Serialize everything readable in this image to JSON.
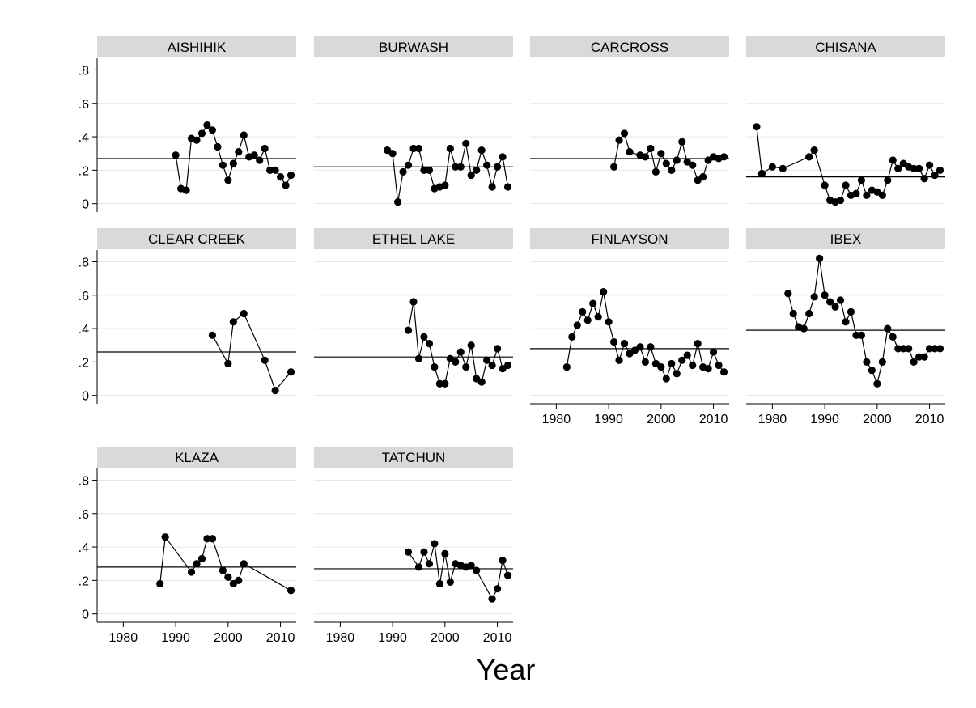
{
  "chart_data": {
    "type": "line",
    "xlabel": "Year",
    "ylabel": "",
    "xlim": [
      1975,
      2013
    ],
    "ylim": [
      -0.05,
      0.87
    ],
    "y_ticks": [
      0,
      0.2,
      0.4,
      0.6,
      0.8
    ],
    "y_tick_labels": [
      "0",
      ".2",
      ".4",
      ".6",
      ".8"
    ],
    "x_ticks": [
      1980,
      1990,
      2000,
      2010
    ],
    "x_tick_labels": [
      "1980",
      "1990",
      "2000",
      "2010"
    ],
    "grid": true,
    "legend": "none",
    "colors": {
      "marker": "#000000",
      "line": "#000000",
      "header_fill": "#d9d9d9",
      "grid": "#e6e6e6"
    },
    "panels": [
      {
        "name": "AISHIHIK",
        "mean": 0.27,
        "x": [
          1990,
          1991,
          1992,
          1993,
          1994,
          1995,
          1996,
          1997,
          1998,
          1999,
          2000,
          2001,
          2002,
          2003,
          2004,
          2005,
          2006,
          2007,
          2008,
          2009,
          2010,
          2011,
          2012
        ],
        "y": [
          0.29,
          0.09,
          0.08,
          0.39,
          0.38,
          0.42,
          0.47,
          0.44,
          0.34,
          0.23,
          0.14,
          0.24,
          0.31,
          0.41,
          0.28,
          0.29,
          0.26,
          0.33,
          0.2,
          0.2,
          0.16,
          0.11,
          0.17
        ]
      },
      {
        "name": "BURWASH",
        "mean": 0.22,
        "x": [
          1989,
          1990,
          1991,
          1992,
          1993,
          1994,
          1995,
          1996,
          1997,
          1998,
          1999,
          2000,
          2001,
          2002,
          2003,
          2004,
          2005,
          2006,
          2007,
          2008,
          2009,
          2010,
          2011,
          2012
        ],
        "y": [
          0.32,
          0.3,
          0.01,
          0.19,
          0.23,
          0.33,
          0.33,
          0.2,
          0.2,
          0.09,
          0.1,
          0.11,
          0.33,
          0.22,
          0.22,
          0.36,
          0.17,
          0.2,
          0.32,
          0.23,
          0.1,
          0.22,
          0.28,
          0.1
        ]
      },
      {
        "name": "CARCROSS",
        "mean": 0.27,
        "x": [
          1991,
          1992,
          1993,
          1994,
          1996,
          1997,
          1998,
          1999,
          2000,
          2001,
          2002,
          2003,
          2004,
          2005,
          2006,
          2007,
          2008,
          2009,
          2010,
          2011,
          2012
        ],
        "y": [
          0.22,
          0.38,
          0.42,
          0.31,
          0.29,
          0.28,
          0.33,
          0.19,
          0.3,
          0.24,
          0.2,
          0.26,
          0.37,
          0.25,
          0.23,
          0.14,
          0.16,
          0.26,
          0.28,
          0.27,
          0.28
        ]
      },
      {
        "name": "CHISANA",
        "mean": 0.16,
        "x": [
          1977,
          1978,
          1980,
          1982,
          1987,
          1988,
          1990,
          1991,
          1992,
          1993,
          1994,
          1995,
          1996,
          1997,
          1998,
          1999,
          2000,
          2001,
          2002,
          2003,
          2004,
          2005,
          2006,
          2007,
          2008,
          2009,
          2010,
          2011,
          2012
        ],
        "y": [
          0.46,
          0.18,
          0.22,
          0.21,
          0.28,
          0.32,
          0.11,
          0.02,
          0.01,
          0.02,
          0.11,
          0.05,
          0.06,
          0.14,
          0.05,
          0.08,
          0.07,
          0.05,
          0.14,
          0.26,
          0.21,
          0.24,
          0.22,
          0.21,
          0.21,
          0.15,
          0.23,
          0.17,
          0.2
        ]
      },
      {
        "name": "CLEAR CREEK",
        "mean": 0.26,
        "x": [
          1997,
          2000,
          2001,
          2003,
          2007,
          2009,
          2012
        ],
        "y": [
          0.36,
          0.19,
          0.44,
          0.49,
          0.21,
          0.03,
          0.14
        ]
      },
      {
        "name": "ETHEL LAKE",
        "mean": 0.23,
        "x": [
          1993,
          1994,
          1995,
          1996,
          1997,
          1998,
          1999,
          2000,
          2001,
          2002,
          2003,
          2004,
          2005,
          2006,
          2007,
          2008,
          2009,
          2010,
          2011,
          2012
        ],
        "y": [
          0.39,
          0.56,
          0.22,
          0.35,
          0.31,
          0.17,
          0.07,
          0.07,
          0.22,
          0.2,
          0.26,
          0.17,
          0.3,
          0.1,
          0.08,
          0.21,
          0.18,
          0.28,
          0.16,
          0.18
        ]
      },
      {
        "name": "FINLAYSON",
        "mean": 0.28,
        "x": [
          1982,
          1983,
          1984,
          1985,
          1986,
          1987,
          1988,
          1989,
          1990,
          1991,
          1992,
          1993,
          1994,
          1995,
          1996,
          1997,
          1998,
          1999,
          2000,
          2001,
          2002,
          2003,
          2004,
          2005,
          2006,
          2007,
          2008,
          2009,
          2010,
          2011,
          2012
        ],
        "y": [
          0.17,
          0.35,
          0.42,
          0.5,
          0.45,
          0.55,
          0.47,
          0.62,
          0.44,
          0.32,
          0.21,
          0.31,
          0.25,
          0.27,
          0.29,
          0.2,
          0.29,
          0.19,
          0.17,
          0.1,
          0.19,
          0.13,
          0.21,
          0.24,
          0.18,
          0.31,
          0.17,
          0.16,
          0.26,
          0.18,
          0.14
        ]
      },
      {
        "name": "IBEX",
        "mean": 0.39,
        "x": [
          1983,
          1984,
          1985,
          1986,
          1987,
          1988,
          1989,
          1990,
          1991,
          1992,
          1993,
          1994,
          1995,
          1996,
          1997,
          1998,
          1999,
          2000,
          2001,
          2002,
          2003,
          2004,
          2005,
          2006,
          2007,
          2008,
          2009,
          2010,
          2011,
          2012
        ],
        "y": [
          0.61,
          0.49,
          0.41,
          0.4,
          0.49,
          0.59,
          0.82,
          0.6,
          0.56,
          0.53,
          0.57,
          0.44,
          0.5,
          0.36,
          0.36,
          0.2,
          0.15,
          0.07,
          0.2,
          0.4,
          0.35,
          0.28,
          0.28,
          0.28,
          0.2,
          0.23,
          0.23,
          0.28,
          0.28,
          0.28
        ]
      },
      {
        "name": "KLAZA",
        "mean": 0.28,
        "x": [
          1987,
          1988,
          1993,
          1994,
          1995,
          1996,
          1997,
          1999,
          2000,
          2001,
          2002,
          2003,
          2012
        ],
        "y": [
          0.18,
          0.46,
          0.25,
          0.3,
          0.33,
          0.45,
          0.45,
          0.26,
          0.22,
          0.18,
          0.2,
          0.3,
          0.14
        ]
      },
      {
        "name": "TATCHUN",
        "mean": 0.27,
        "x": [
          1993,
          1995,
          1996,
          1997,
          1998,
          1999,
          2000,
          2001,
          2002,
          2003,
          2004,
          2005,
          2006,
          2009,
          2010,
          2011,
          2012
        ],
        "y": [
          0.37,
          0.28,
          0.37,
          0.3,
          0.42,
          0.18,
          0.36,
          0.19,
          0.3,
          0.29,
          0.28,
          0.29,
          0.26,
          0.09,
          0.15,
          0.32,
          0.23
        ]
      }
    ]
  }
}
